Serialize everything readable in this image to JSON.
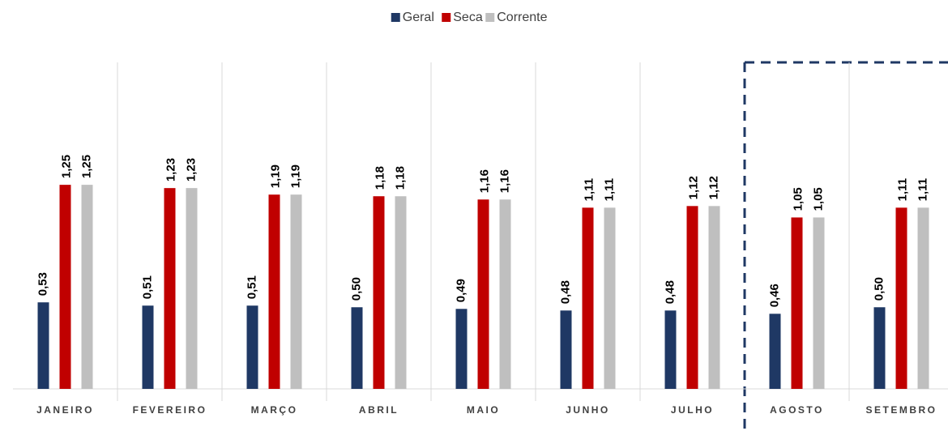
{
  "chart_data": {
    "type": "bar",
    "categories": [
      "JANEIRO",
      "FEVEREIRO",
      "MARÇO",
      "ABRIL",
      "MAIO",
      "JUNHO",
      "JULHO",
      "AGOSTO",
      "SETEMBRO"
    ],
    "series": [
      {
        "name": "Geral",
        "color": "#1f3864",
        "values": [
          0.53,
          0.51,
          0.51,
          0.5,
          0.49,
          0.48,
          0.48,
          0.46,
          0.5
        ],
        "value_labels": [
          "0,53",
          "0,51",
          "0,51",
          "0,50",
          "0,49",
          "0,48",
          "0,48",
          "0,46",
          "0,50"
        ]
      },
      {
        "name": "Seca",
        "color": "#c00000",
        "values": [
          1.25,
          1.23,
          1.19,
          1.18,
          1.16,
          1.11,
          1.12,
          1.05,
          1.11
        ],
        "value_labels": [
          "1,25",
          "1,23",
          "1,19",
          "1,18",
          "1,16",
          "1,11",
          "1,12",
          "1,05",
          "1,11"
        ]
      },
      {
        "name": "Corrente",
        "color": "#bfbfbf",
        "values": [
          1.25,
          1.23,
          1.19,
          1.18,
          1.16,
          1.11,
          1.12,
          1.05,
          1.11
        ],
        "value_labels": [
          "1,25",
          "1,23",
          "1,19",
          "1,18",
          "1,16",
          "1,11",
          "1,12",
          "1,05",
          "1,11"
        ]
      }
    ],
    "ylim": [
      0,
      2.0
    ],
    "legend": "top"
  }
}
